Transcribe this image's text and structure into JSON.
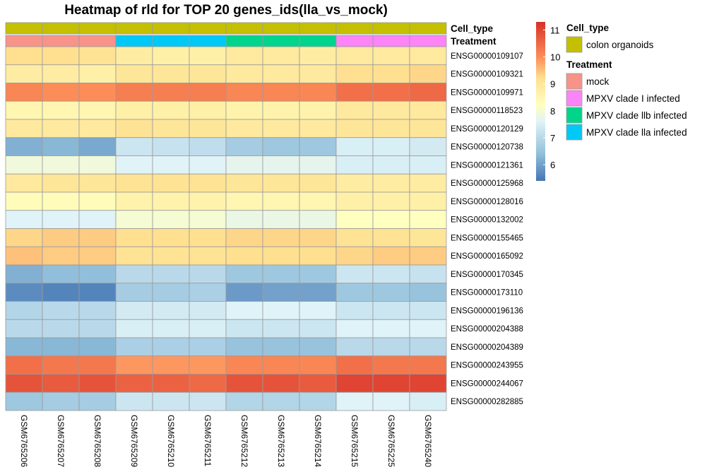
{
  "chart_data": {
    "type": "heatmap",
    "title": "Heatmap of rld for TOP 20 genes_ids(lla_vs_mock)",
    "columns": [
      "GSM6765206",
      "GSM6765207",
      "GSM6765208",
      "GSM6765209",
      "GSM6765210",
      "GSM6765211",
      "GSM6765212",
      "GSM6765213",
      "GSM6765214",
      "GSM6765215",
      "GSM6765225",
      "GSM6765240"
    ],
    "rows": [
      "ENSG00000109107",
      "ENSG00000109321",
      "ENSG00000109971",
      "ENSG00000118523",
      "ENSG00000120129",
      "ENSG00000120738",
      "ENSG00000121361",
      "ENSG00000125968",
      "ENSG00000128016",
      "ENSG00000132002",
      "ENSG00000155465",
      "ENSG00000165092",
      "ENSG00000170345",
      "ENSG00000173110",
      "ENSG00000196136",
      "ENSG00000204388",
      "ENSG00000204389",
      "ENSG00000243955",
      "ENSG00000244067",
      "ENSG00000282885"
    ],
    "values": [
      [
        9.2,
        9.2,
        9.1,
        8.8,
        8.7,
        8.7,
        8.9,
        8.9,
        8.8,
        8.9,
        8.9,
        8.9
      ],
      [
        8.8,
        8.8,
        8.7,
        9.0,
        9.0,
        9.0,
        8.9,
        8.9,
        8.9,
        9.2,
        9.2,
        9.3
      ],
      [
        10.1,
        10.0,
        10.0,
        10.2,
        10.2,
        10.2,
        10.1,
        10.1,
        10.1,
        10.4,
        10.4,
        10.5
      ],
      [
        8.5,
        8.5,
        8.5,
        8.7,
        8.7,
        8.7,
        8.6,
        8.6,
        8.6,
        8.9,
        8.9,
        8.9
      ],
      [
        8.9,
        8.9,
        8.9,
        9.1,
        9.0,
        9.0,
        8.9,
        8.9,
        8.9,
        9.0,
        9.0,
        9.0
      ],
      [
        6.2,
        6.3,
        6.1,
        7.3,
        7.2,
        7.1,
        6.7,
        6.6,
        6.6,
        7.5,
        7.5,
        7.4
      ],
      [
        7.9,
        7.9,
        7.9,
        7.6,
        7.6,
        7.6,
        7.7,
        7.7,
        7.7,
        7.5,
        7.5,
        7.5
      ],
      [
        8.9,
        9.0,
        9.0,
        9.1,
        9.1,
        9.1,
        9.0,
        9.0,
        9.0,
        8.8,
        8.8,
        8.8
      ],
      [
        8.3,
        8.3,
        8.3,
        8.6,
        8.6,
        8.6,
        8.5,
        8.5,
        8.5,
        8.7,
        8.7,
        8.7
      ],
      [
        7.6,
        7.6,
        7.6,
        8.0,
        8.0,
        8.0,
        7.8,
        7.8,
        7.8,
        8.2,
        8.2,
        8.2
      ],
      [
        9.3,
        9.4,
        9.4,
        9.2,
        9.2,
        9.2,
        9.3,
        9.3,
        9.3,
        9.1,
        9.1,
        9.0
      ],
      [
        9.5,
        9.4,
        9.4,
        9.1,
        9.1,
        9.1,
        9.2,
        9.2,
        9.2,
        9.3,
        9.4,
        9.4
      ],
      [
        6.2,
        6.4,
        6.4,
        7.0,
        7.0,
        7.0,
        6.6,
        6.6,
        6.6,
        7.3,
        7.3,
        7.2
      ],
      [
        5.7,
        5.6,
        5.6,
        6.7,
        6.7,
        6.8,
        5.9,
        6.0,
        6.0,
        6.6,
        6.6,
        6.5
      ],
      [
        6.9,
        7.0,
        7.0,
        7.4,
        7.4,
        7.4,
        7.6,
        7.6,
        7.6,
        7.3,
        7.3,
        7.3
      ],
      [
        7.0,
        7.0,
        7.0,
        7.5,
        7.5,
        7.5,
        7.3,
        7.3,
        7.3,
        7.6,
        7.6,
        7.6
      ],
      [
        6.3,
        6.3,
        6.3,
        6.8,
        6.8,
        6.8,
        6.5,
        6.5,
        6.5,
        7.0,
        7.0,
        7.0
      ],
      [
        10.4,
        10.3,
        10.3,
        9.9,
        9.9,
        9.9,
        10.1,
        10.1,
        10.1,
        10.4,
        10.3,
        10.3
      ],
      [
        10.8,
        10.7,
        10.8,
        10.6,
        10.6,
        10.5,
        10.8,
        10.8,
        10.7,
        11.0,
        11.0,
        11.0
      ],
      [
        6.6,
        6.7,
        6.7,
        7.3,
        7.3,
        7.3,
        6.9,
        6.9,
        6.9,
        7.6,
        7.6,
        7.5
      ]
    ],
    "color_scale": {
      "min": 5.4,
      "max": 11.3,
      "ticks": [
        6,
        7,
        8,
        9,
        10,
        11
      ],
      "stops": [
        {
          "v": 5.4,
          "color": "#4575b4"
        },
        {
          "v": 6.4,
          "color": "#91bfdb"
        },
        {
          "v": 7.6,
          "color": "#e0f3f8"
        },
        {
          "v": 8.2,
          "color": "#ffffbf"
        },
        {
          "v": 9.2,
          "color": "#fee090"
        },
        {
          "v": 10.0,
          "color": "#fc8d59"
        },
        {
          "v": 11.3,
          "color": "#d73027"
        }
      ]
    },
    "annotations": {
      "Cell_type": [
        "colon organoids",
        "colon organoids",
        "colon organoids",
        "colon organoids",
        "colon organoids",
        "colon organoids",
        "colon organoids",
        "colon organoids",
        "colon organoids",
        "colon organoids",
        "colon organoids",
        "colon organoids"
      ],
      "Treatment": [
        "mock",
        "mock",
        "mock",
        "MPXV clade lla infected",
        "MPXV clade lla infected",
        "MPXV clade lla infected",
        "MPXV clade llb infected",
        "MPXV clade llb infected",
        "MPXV clade llb infected",
        "MPXV clade l infected",
        "MPXV clade l infected",
        "MPXV clade l infected"
      ]
    },
    "annotation_labels": [
      "Cell_type",
      "Treatment"
    ],
    "legend": [
      {
        "title": "Cell_type",
        "items": [
          {
            "label": "colon organoids",
            "color": "#c4c000"
          }
        ]
      },
      {
        "title": "Treatment",
        "items": [
          {
            "label": "mock",
            "color": "#f8938a"
          },
          {
            "label": "MPXV clade I infected",
            "color": "#fb84f6"
          },
          {
            "label": "MPXV clade llb infected",
            "color": "#00d58b"
          },
          {
            "label": "MPXV clade lla infected",
            "color": "#00c8f7"
          }
        ]
      }
    ],
    "legend_placement": "right"
  }
}
